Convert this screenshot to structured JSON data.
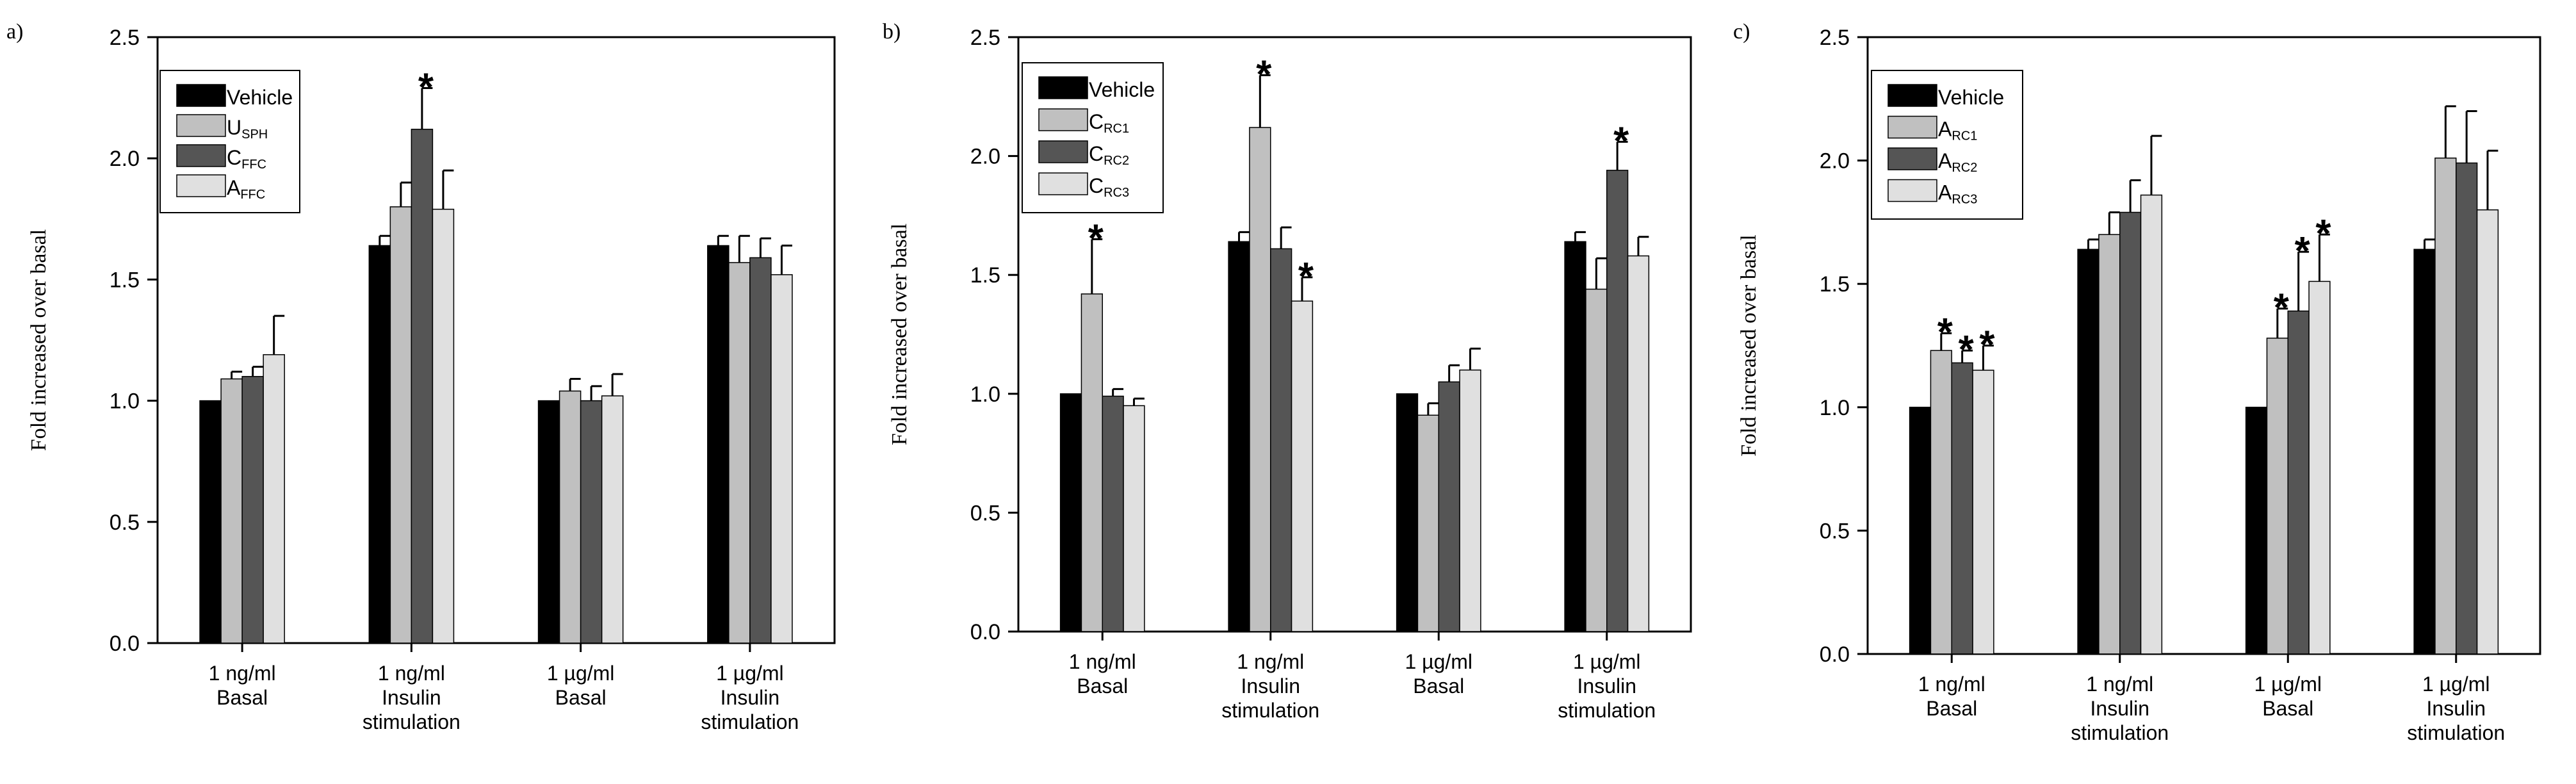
{
  "colors": {
    "vehicle": "#000000",
    "s1": "#c0c0c0",
    "s2": "#555555",
    "s3": "#e0e0e0",
    "axis": "#000000",
    "background": "#ffffff"
  },
  "chart_data": [
    {
      "type": "bar",
      "panel_label": "a)",
      "ylabel": "Fold increased over basal",
      "xlabel": "",
      "ylim": [
        0,
        2.5
      ],
      "yticks": [
        "0.0",
        "0.5",
        "1.0",
        "1.5",
        "2.0",
        "2.5"
      ],
      "categories": [
        {
          "line1": "1 ng/ml",
          "line2": "Basal"
        },
        {
          "line1": "1 ng/ml",
          "line2": "Insulin",
          "line3": "stimulation"
        },
        {
          "line1": "1 µg/ml",
          "line2": "Basal"
        },
        {
          "line1": "1 µg/ml",
          "line2": "Insulin",
          "line3": "stimulation"
        }
      ],
      "legend": [
        {
          "main": "Vehicle",
          "sub": ""
        },
        {
          "main": "U",
          "sub": "SPH"
        },
        {
          "main": "C",
          "sub": "FFC"
        },
        {
          "main": "A",
          "sub": "FFC"
        }
      ],
      "series": [
        {
          "name": "Vehicle",
          "values": [
            1.0,
            1.64,
            1.0,
            1.64
          ],
          "errors": [
            0,
            0.04,
            0,
            0.04
          ],
          "significant": [
            false,
            false,
            false,
            false
          ]
        },
        {
          "name": "USPH",
          "values": [
            1.09,
            1.8,
            1.04,
            1.57
          ],
          "errors": [
            0.03,
            0.1,
            0.05,
            0.11
          ],
          "significant": [
            false,
            false,
            false,
            false
          ]
        },
        {
          "name": "CFFC",
          "values": [
            1.1,
            2.12,
            1.0,
            1.59
          ],
          "errors": [
            0.04,
            0.17,
            0.06,
            0.08
          ],
          "significant": [
            false,
            true,
            false,
            false
          ]
        },
        {
          "name": "AFFC",
          "values": [
            1.19,
            1.79,
            1.02,
            1.52
          ],
          "errors": [
            0.16,
            0.16,
            0.09,
            0.12
          ],
          "significant": [
            false,
            false,
            false,
            false
          ]
        }
      ],
      "sig_marker": "*"
    },
    {
      "type": "bar",
      "panel_label": "b)",
      "ylabel": "Fold increased over basal",
      "xlabel": "",
      "ylim": [
        0,
        2.5
      ],
      "yticks": [
        "0.0",
        "0.5",
        "1.0",
        "1.5",
        "2.0",
        "2.5"
      ],
      "categories": [
        {
          "line1": "1 ng/ml",
          "line2": "Basal"
        },
        {
          "line1": "1 ng/ml",
          "line2": "Insulin",
          "line3": "stimulation"
        },
        {
          "line1": "1 µg/ml",
          "line2": "Basal"
        },
        {
          "line1": "1 µg/ml",
          "line2": "Insulin",
          "line3": "stimulation"
        }
      ],
      "legend": [
        {
          "main": "Vehicle",
          "sub": ""
        },
        {
          "main": "C",
          "sub": "RC1"
        },
        {
          "main": "C",
          "sub": "RC2"
        },
        {
          "main": "C",
          "sub": "RC3"
        }
      ],
      "series": [
        {
          "name": "Vehicle",
          "values": [
            1.0,
            1.64,
            1.0,
            1.64
          ],
          "errors": [
            0,
            0.04,
            0,
            0.04
          ],
          "significant": [
            false,
            false,
            false,
            false
          ]
        },
        {
          "name": "CRC1",
          "values": [
            1.42,
            2.12,
            0.91,
            1.44
          ],
          "errors": [
            0.23,
            0.22,
            0.05,
            0.13
          ],
          "significant": [
            true,
            true,
            false,
            false
          ]
        },
        {
          "name": "CRC2",
          "values": [
            0.99,
            1.61,
            1.05,
            1.94
          ],
          "errors": [
            0.03,
            0.09,
            0.07,
            0.12
          ],
          "significant": [
            false,
            false,
            false,
            true
          ]
        },
        {
          "name": "CRC3",
          "values": [
            0.95,
            1.39,
            1.1,
            1.58
          ],
          "errors": [
            0.03,
            0.1,
            0.09,
            0.08
          ],
          "significant": [
            false,
            true,
            false,
            false
          ]
        }
      ],
      "sig_marker": "*"
    },
    {
      "type": "bar",
      "panel_label": "c)",
      "ylabel": "Fold increased over basal",
      "xlabel": "",
      "ylim": [
        0,
        2.5
      ],
      "yticks": [
        "0.0",
        "0.5",
        "1.0",
        "1.5",
        "2.0",
        "2.5"
      ],
      "categories": [
        {
          "line1": "1 ng/ml",
          "line2": "Basal"
        },
        {
          "line1": "1 ng/ml",
          "line2": "Insulin",
          "line3": "stimulation"
        },
        {
          "line1": "1 µg/ml",
          "line2": "Basal"
        },
        {
          "line1": "1 µg/ml",
          "line2": "Insulin",
          "line3": "stimulation"
        }
      ],
      "legend": [
        {
          "main": "Vehicle",
          "sub": ""
        },
        {
          "main": "A",
          "sub": "RC1"
        },
        {
          "main": "A",
          "sub": "RC2"
        },
        {
          "main": "A",
          "sub": "RC3"
        }
      ],
      "series": [
        {
          "name": "Vehicle",
          "values": [
            1.0,
            1.64,
            1.0,
            1.64
          ],
          "errors": [
            0,
            0.04,
            0,
            0.04
          ],
          "significant": [
            false,
            false,
            false,
            false
          ]
        },
        {
          "name": "ARC1",
          "values": [
            1.23,
            1.7,
            1.28,
            2.01
          ],
          "errors": [
            0.07,
            0.09,
            0.12,
            0.21
          ],
          "significant": [
            true,
            false,
            true,
            false
          ]
        },
        {
          "name": "ARC2",
          "values": [
            1.18,
            1.79,
            1.39,
            1.99
          ],
          "errors": [
            0.05,
            0.13,
            0.24,
            0.21
          ],
          "significant": [
            true,
            false,
            true,
            false
          ]
        },
        {
          "name": "ARC3",
          "values": [
            1.15,
            1.86,
            1.51,
            1.8
          ],
          "errors": [
            0.1,
            0.24,
            0.19,
            0.24
          ],
          "significant": [
            true,
            false,
            true,
            false
          ]
        }
      ],
      "sig_marker": "*"
    }
  ]
}
